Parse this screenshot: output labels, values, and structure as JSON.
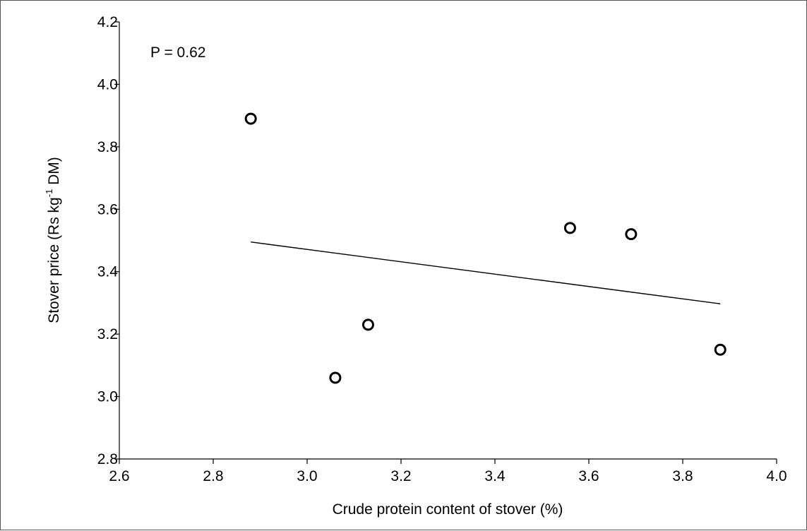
{
  "chart_data": {
    "type": "scatter",
    "title": "",
    "xlabel": "Crude protein content of stover (%)",
    "ylabel_main": "Stover price (Rs kg",
    "ylabel_sup": "-1",
    "ylabel_tail": " DM)",
    "annotation": "P = 0.62",
    "xlim": [
      2.6,
      4.0
    ],
    "ylim": [
      2.8,
      4.2
    ],
    "xticks": [
      "2.6",
      "2.8",
      "3.0",
      "3.2",
      "3.4",
      "3.6",
      "3.8",
      "4.0"
    ],
    "yticks": [
      "2.8",
      "3.0",
      "3.2",
      "3.4",
      "3.6",
      "3.8",
      "4.0",
      "4.2"
    ],
    "points": [
      {
        "x": 2.88,
        "y": 3.89
      },
      {
        "x": 3.06,
        "y": 3.06
      },
      {
        "x": 3.13,
        "y": 3.23
      },
      {
        "x": 3.56,
        "y": 3.54
      },
      {
        "x": 3.69,
        "y": 3.52
      },
      {
        "x": 3.88,
        "y": 3.15
      }
    ],
    "trendline": {
      "x1": 2.88,
      "y1": 3.495,
      "x2": 3.88,
      "y2": 3.297
    },
    "grid": false,
    "marker": "open-circle"
  }
}
